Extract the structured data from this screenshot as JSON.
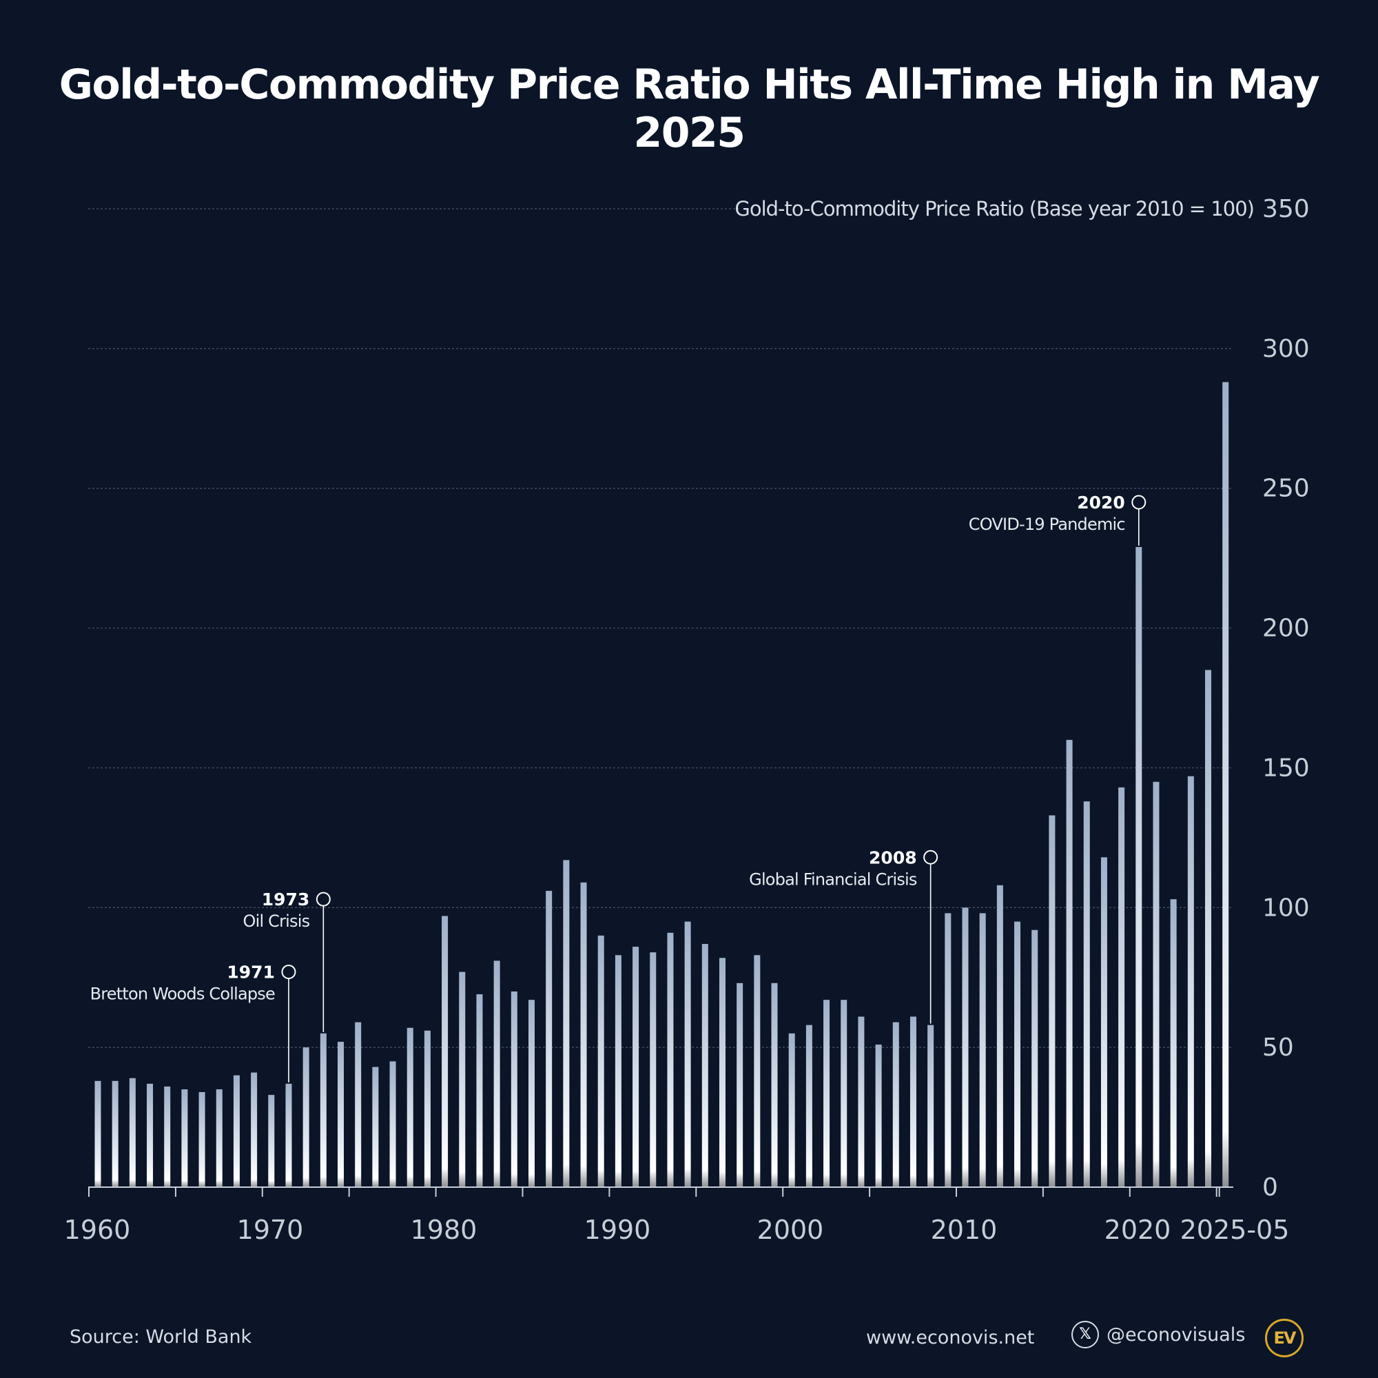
{
  "title": "Gold-to-Commodity Price Ratio Hits All-Time High in May 2025",
  "chart_data": {
    "type": "bar",
    "title": "Gold-to-Commodity Price Ratio Hits All-Time High in May 2025",
    "ylabel": "Gold-to-Commodity Price Ratio (Base year 2010 = 100)",
    "xlabel": "",
    "ylim": [
      0,
      350
    ],
    "y_ticks": [
      0,
      50,
      100,
      150,
      200,
      250,
      300,
      350
    ],
    "x_tick_labels": [
      "1960",
      "1970",
      "1980",
      "1990",
      "2000",
      "2010",
      "2020",
      "2025-05"
    ],
    "grid": true,
    "categories": [
      "1960",
      "1961",
      "1962",
      "1963",
      "1964",
      "1965",
      "1966",
      "1967",
      "1968",
      "1969",
      "1970",
      "1971",
      "1972",
      "1973",
      "1974",
      "1975",
      "1976",
      "1977",
      "1978",
      "1979",
      "1980",
      "1981",
      "1982",
      "1983",
      "1984",
      "1985",
      "1986",
      "1987",
      "1988",
      "1989",
      "1990",
      "1991",
      "1992",
      "1993",
      "1994",
      "1995",
      "1996",
      "1997",
      "1998",
      "1999",
      "2000",
      "2001",
      "2002",
      "2003",
      "2004",
      "2005",
      "2006",
      "2007",
      "2008",
      "2009",
      "2010",
      "2011",
      "2012",
      "2013",
      "2014",
      "2015",
      "2016",
      "2017",
      "2018",
      "2019",
      "2020",
      "2021",
      "2022",
      "2023",
      "2024",
      "2025-05"
    ],
    "values": [
      38,
      38,
      39,
      37,
      36,
      35,
      34,
      35,
      40,
      41,
      33,
      37,
      50,
      55,
      52,
      59,
      43,
      45,
      57,
      56,
      97,
      77,
      69,
      81,
      70,
      67,
      106,
      117,
      109,
      90,
      83,
      86,
      84,
      91,
      95,
      87,
      82,
      73,
      83,
      73,
      55,
      58,
      67,
      67,
      61,
      51,
      59,
      61,
      58,
      98,
      100,
      98,
      108,
      95,
      92,
      133,
      160,
      138,
      118,
      143,
      229,
      145,
      103,
      147,
      185,
      288
    ],
    "annotations": [
      {
        "year": "1971",
        "label": "Bretton Woods Collapse",
        "marker_value": 77
      },
      {
        "year": "1973",
        "label": "Oil Crisis",
        "marker_value": 103
      },
      {
        "year": "2008",
        "label": "Global Financial Crisis",
        "marker_value": 118
      },
      {
        "year": "2020",
        "label": "COVID-19 Pandemic",
        "marker_value": 245
      }
    ]
  },
  "footer": {
    "source": "Source: World Bank",
    "website": "www.econovis.net",
    "handle": "@econovisuals",
    "x_icon": "𝕏",
    "logo_text": "EV"
  },
  "colors": {
    "background": "#0b1527",
    "bar_top": "#9fb0c9",
    "bar_mid": "#ffffff",
    "bar_bottom": "#8a8c90",
    "grid": "#4a5568",
    "text": "#d7dce5",
    "logo": "#d9a72a"
  }
}
